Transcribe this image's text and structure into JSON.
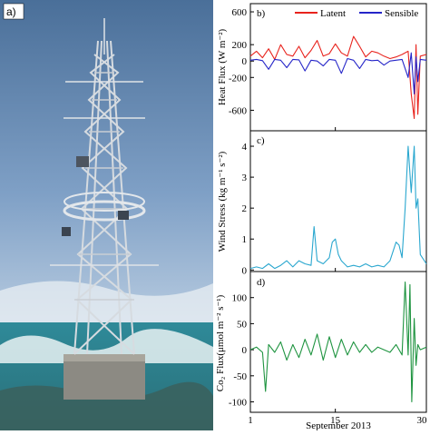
{
  "photo": {
    "panel_label": "a)"
  },
  "chart_data": [
    {
      "type": "line",
      "panel_label": "b)",
      "ylabel": "Heat Flux (W m⁻²)",
      "xlim": [
        1,
        30
      ],
      "ylim": [
        -850,
        700
      ],
      "yticks": [
        600,
        200,
        0,
        -200,
        -600
      ],
      "xticks": [
        1,
        15,
        30
      ],
      "legend_position": "top",
      "series": [
        {
          "name": "Latent",
          "color": "#e8231d",
          "x": [
            1,
            2,
            3,
            4,
            5,
            6,
            7,
            8,
            9,
            10,
            11,
            12,
            13,
            14,
            15,
            16,
            17,
            18,
            19,
            20,
            21,
            22,
            23,
            24,
            25,
            26,
            27,
            27.5,
            28,
            28.3,
            28.6,
            29,
            30
          ],
          "values": [
            60,
            120,
            40,
            150,
            20,
            200,
            80,
            60,
            180,
            40,
            130,
            250,
            60,
            90,
            210,
            100,
            60,
            300,
            180,
            50,
            120,
            100,
            60,
            30,
            50,
            80,
            120,
            -400,
            -700,
            200,
            -650,
            60,
            80
          ]
        },
        {
          "name": "Sensible",
          "color": "#2525c8",
          "x": [
            1,
            2,
            3,
            4,
            5,
            6,
            7,
            8,
            9,
            10,
            11,
            12,
            13,
            14,
            15,
            16,
            17,
            18,
            19,
            20,
            21,
            22,
            23,
            24,
            25,
            26,
            27,
            27.5,
            28,
            28.3,
            28.6,
            29,
            30
          ],
          "values": [
            10,
            20,
            5,
            -100,
            20,
            10,
            -80,
            20,
            15,
            -120,
            10,
            0,
            -60,
            20,
            10,
            -150,
            30,
            10,
            -90,
            20,
            5,
            10,
            -50,
            0,
            10,
            20,
            -200,
            100,
            -400,
            50,
            -250,
            20,
            10
          ]
        }
      ]
    },
    {
      "type": "line",
      "panel_label": "c)",
      "ylabel": "Wind Stress (kg m⁻¹ s⁻²)",
      "xlim": [
        1,
        30
      ],
      "ylim": [
        -0.05,
        4.5
      ],
      "yticks": [
        0,
        1,
        2,
        3,
        4
      ],
      "xticks": [
        1,
        15,
        30
      ],
      "series": [
        {
          "color": "#2aa7cf",
          "x": [
            1,
            2,
            3,
            4,
            5,
            6,
            7,
            8,
            9,
            10,
            11,
            11.5,
            12,
            13,
            14,
            14.5,
            15,
            15.5,
            16,
            17,
            18,
            19,
            20,
            21,
            22,
            23,
            24,
            25,
            25.5,
            26,
            26.5,
            27,
            27.5,
            28,
            28.3,
            28.6,
            29,
            30
          ],
          "values": [
            0.05,
            0.1,
            0.05,
            0.2,
            0.05,
            0.15,
            0.3,
            0.1,
            0.3,
            0.2,
            0.15,
            1.4,
            0.3,
            0.2,
            0.4,
            0.9,
            1.0,
            0.5,
            0.3,
            0.1,
            0.15,
            0.1,
            0.2,
            0.1,
            0.15,
            0.1,
            0.3,
            0.9,
            0.8,
            0.4,
            2.0,
            4.0,
            2.5,
            4.0,
            2.0,
            2.3,
            0.5,
            0.2
          ]
        }
      ]
    },
    {
      "type": "line",
      "panel_label": "d)",
      "ylabel": "Co₂ Flux(μmol m⁻² s⁻¹)",
      "xlabel": "September 2013",
      "xlim": [
        1,
        30
      ],
      "ylim": [
        -120,
        150
      ],
      "yticks": [
        100,
        50,
        0,
        -50,
        -100
      ],
      "xticks": [
        1,
        15,
        30
      ],
      "series": [
        {
          "color": "#1f9440",
          "x": [
            1,
            2,
            3,
            3.5,
            4,
            5,
            6,
            7,
            8,
            9,
            10,
            11,
            12,
            13,
            14,
            15,
            16,
            17,
            18,
            19,
            20,
            21,
            22,
            23,
            24,
            25,
            26,
            26.5,
            27,
            27.3,
            27.6,
            28,
            28.3,
            28.6,
            29,
            30
          ],
          "values": [
            0,
            5,
            -5,
            -80,
            10,
            -5,
            15,
            -20,
            10,
            -15,
            20,
            -10,
            30,
            -20,
            25,
            -15,
            20,
            -10,
            15,
            -5,
            10,
            -5,
            5,
            0,
            -5,
            10,
            -10,
            130,
            -10,
            125,
            -100,
            60,
            -30,
            10,
            0,
            5
          ]
        }
      ]
    }
  ]
}
